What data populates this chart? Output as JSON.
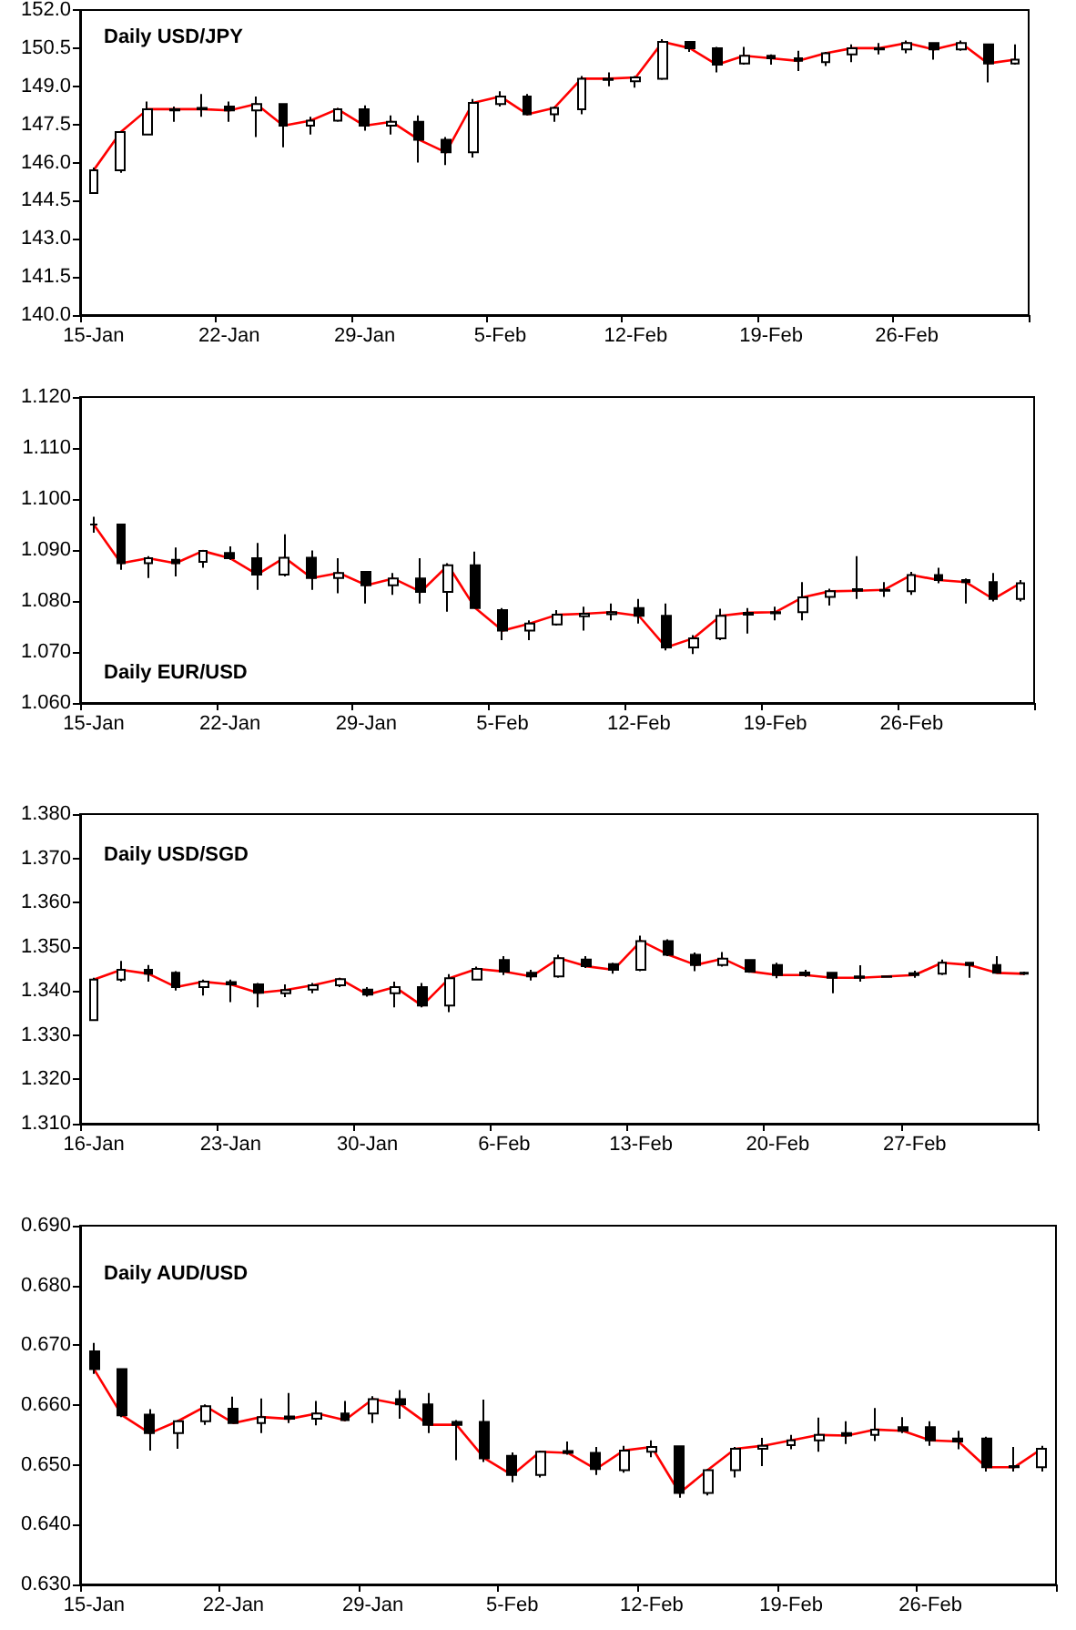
{
  "chart_data": [
    {
      "type": "candlestick",
      "title": "Daily USD/JPY",
      "categories": [
        "15-Jan",
        null,
        null,
        null,
        null,
        "22-Jan",
        null,
        null,
        null,
        null,
        "29-Jan",
        null,
        null,
        null,
        null,
        "5-Feb",
        null,
        null,
        null,
        null,
        "12-Feb",
        null,
        null,
        null,
        null,
        "19-Feb",
        null,
        null,
        null,
        null,
        "26-Feb",
        null,
        null,
        null,
        null
      ],
      "ylim": [
        140,
        152
      ],
      "yticks": [
        {
          "value": 140,
          "label": "140.0"
        },
        {
          "value": 141.5,
          "label": "141.5"
        },
        {
          "value": 143,
          "label": "143.0"
        },
        {
          "value": 144.5,
          "label": "144.5"
        },
        {
          "value": 146,
          "label": "146.0"
        },
        {
          "value": 147.5,
          "label": "147.5"
        },
        {
          "value": 149,
          "label": "149.0"
        },
        {
          "value": 150.5,
          "label": "150.5"
        },
        {
          "value": 152,
          "label": "152.0"
        }
      ],
      "grid": false,
      "series": [
        {
          "color": "#000000",
          "ohlc": [
            [
              144.8,
              145.8,
              144.8,
              145.7
            ],
            [
              145.7,
              147.2,
              145.6,
              147.2
            ],
            [
              147.1,
              148.4,
              147.1,
              148.1
            ],
            [
              148.05,
              148.2,
              147.6,
              148.1
            ],
            [
              148.15,
              148.7,
              147.8,
              148.1
            ],
            [
              148.2,
              148.4,
              147.6,
              148.05
            ],
            [
              148.05,
              148.6,
              147.0,
              148.3
            ],
            [
              148.3,
              148.3,
              146.6,
              147.45
            ],
            [
              147.45,
              147.8,
              147.1,
              147.65
            ],
            [
              147.65,
              148.15,
              147.6,
              148.1
            ],
            [
              148.1,
              148.25,
              147.25,
              147.45
            ],
            [
              147.45,
              147.85,
              147.1,
              147.6
            ],
            [
              147.6,
              147.85,
              146.0,
              146.9
            ],
            [
              146.9,
              147.0,
              145.9,
              146.4
            ],
            [
              146.4,
              148.5,
              146.2,
              148.35
            ],
            [
              148.3,
              148.8,
              148.2,
              148.6
            ],
            [
              148.6,
              148.7,
              147.85,
              147.9
            ],
            [
              147.9,
              148.2,
              147.6,
              148.15
            ],
            [
              148.1,
              149.4,
              147.9,
              149.3
            ],
            [
              149.25,
              149.55,
              149.0,
              149.3
            ],
            [
              149.2,
              149.4,
              148.95,
              149.35
            ],
            [
              149.3,
              150.85,
              149.25,
              150.75
            ],
            [
              150.75,
              150.75,
              150.35,
              150.5
            ],
            [
              150.5,
              150.55,
              149.55,
              149.85
            ],
            [
              149.9,
              150.55,
              149.85,
              150.2
            ],
            [
              150.2,
              150.25,
              149.85,
              150.1
            ],
            [
              150.1,
              150.4,
              149.6,
              150.0
            ],
            [
              149.95,
              150.35,
              149.8,
              150.3
            ],
            [
              150.25,
              150.65,
              149.95,
              150.5
            ],
            [
              150.45,
              150.7,
              150.25,
              150.5
            ],
            [
              150.45,
              150.8,
              150.3,
              150.7
            ],
            [
              150.7,
              150.7,
              150.05,
              150.45
            ],
            [
              150.45,
              150.8,
              150.4,
              150.7
            ],
            [
              150.65,
              150.65,
              149.15,
              149.9
            ],
            [
              149.9,
              150.65,
              149.85,
              150.05
            ]
          ]
        },
        {
          "type": "line",
          "color": "#ff0000",
          "marker": "none",
          "values": [
            145.7,
            147.2,
            148.1,
            148.1,
            148.1,
            148.05,
            148.3,
            147.45,
            147.65,
            148.1,
            147.45,
            147.6,
            146.9,
            146.4,
            148.35,
            148.6,
            147.9,
            148.15,
            149.3,
            149.3,
            149.35,
            150.75,
            150.5,
            149.85,
            150.2,
            150.1,
            150.0,
            150.3,
            150.5,
            150.5,
            150.7,
            150.45,
            150.7,
            149.9,
            150.05
          ]
        }
      ]
    },
    {
      "type": "candlestick",
      "title": "Daily EUR/USD",
      "categories": [
        "15-Jan",
        null,
        null,
        null,
        null,
        "22-Jan",
        null,
        null,
        null,
        null,
        "29-Jan",
        null,
        null,
        null,
        null,
        "5-Feb",
        null,
        null,
        null,
        null,
        "12-Feb",
        null,
        null,
        null,
        null,
        "19-Feb",
        null,
        null,
        null,
        null,
        "26-Feb",
        null,
        null,
        null,
        null
      ],
      "ylim": [
        1.06,
        1.12
      ],
      "yticks": [
        {
          "value": 1.06,
          "label": "1.060"
        },
        {
          "value": 1.07,
          "label": "1.070"
        },
        {
          "value": 1.08,
          "label": "1.080"
        },
        {
          "value": 1.09,
          "label": "1.090"
        },
        {
          "value": 1.1,
          "label": "1.100"
        },
        {
          "value": 1.11,
          "label": "1.110"
        },
        {
          "value": 1.12,
          "label": "1.120"
        }
      ],
      "grid": false,
      "series": [
        {
          "color": "#000000",
          "ohlc": [
            [
              1.095,
              1.0965,
              1.0934,
              1.095
            ],
            [
              1.095,
              1.095,
              1.0861,
              1.0874
            ],
            [
              1.0874,
              1.0888,
              1.0845,
              1.0884
            ],
            [
              1.0881,
              1.0905,
              1.0848,
              1.0874
            ],
            [
              1.0877,
              1.0899,
              1.0865,
              1.0898
            ],
            [
              1.0894,
              1.0907,
              1.0881,
              1.0884
            ],
            [
              1.0884,
              1.0914,
              1.0822,
              1.0852
            ],
            [
              1.0852,
              1.0931,
              1.0848,
              1.0885
            ],
            [
              1.0885,
              1.0899,
              1.0822,
              1.0845
            ],
            [
              1.0845,
              1.0884,
              1.0815,
              1.0855
            ],
            [
              1.0857,
              1.0857,
              1.0795,
              1.0831
            ],
            [
              1.0831,
              1.0855,
              1.0812,
              1.0844
            ],
            [
              1.0844,
              1.0884,
              1.0795,
              1.0818
            ],
            [
              1.0818,
              1.0874,
              1.0779,
              1.087
            ],
            [
              1.087,
              1.0897,
              1.0786,
              1.0786
            ],
            [
              1.0782,
              1.0786,
              1.0723,
              1.0742
            ],
            [
              1.0742,
              1.0762,
              1.0723,
              1.0756
            ],
            [
              1.0754,
              1.0782,
              1.0752,
              1.0773
            ],
            [
              1.077,
              1.0789,
              1.0742,
              1.0775
            ],
            [
              1.0774,
              1.0795,
              1.0762,
              1.0778
            ],
            [
              1.0786,
              1.0804,
              1.0756,
              1.0771
            ],
            [
              1.0771,
              1.0795,
              1.0703,
              1.0709
            ],
            [
              1.0709,
              1.0733,
              1.0696,
              1.0727
            ],
            [
              1.0727,
              1.0785,
              1.0723,
              1.0771
            ],
            [
              1.0773,
              1.0786,
              1.0736,
              1.0777
            ],
            [
              1.0776,
              1.0789,
              1.0762,
              1.0778
            ],
            [
              1.0778,
              1.0837,
              1.0762,
              1.0807
            ],
            [
              1.0808,
              1.0824,
              1.0791,
              1.0819
            ],
            [
              1.0823,
              1.0888,
              1.0804,
              1.082
            ],
            [
              1.082,
              1.0837,
              1.0808,
              1.0822
            ],
            [
              1.0819,
              1.0857,
              1.0812,
              1.0851
            ],
            [
              1.0851,
              1.0865,
              1.0835,
              1.0841
            ],
            [
              1.0841,
              1.0844,
              1.0795,
              1.0837
            ],
            [
              1.0837,
              1.0855,
              1.0799,
              1.0804
            ],
            [
              1.0804,
              1.0841,
              1.0799,
              1.0835
            ]
          ]
        },
        {
          "type": "line",
          "color": "#ff0000",
          "marker": "none",
          "values": [
            1.095,
            1.0874,
            1.0884,
            1.0874,
            1.0898,
            1.0884,
            1.0852,
            1.0885,
            1.0845,
            1.0855,
            1.0831,
            1.0844,
            1.0818,
            1.087,
            1.0786,
            1.0742,
            1.0756,
            1.0773,
            1.0775,
            1.0778,
            1.0771,
            1.0709,
            1.0727,
            1.0771,
            1.0777,
            1.0778,
            1.0807,
            1.0819,
            1.082,
            1.0822,
            1.0851,
            1.0841,
            1.0837,
            1.0804,
            1.0835
          ]
        }
      ]
    },
    {
      "type": "candlestick",
      "title": "Daily USD/SGD",
      "categories": [
        "16-Jan",
        null,
        null,
        null,
        null,
        "23-Jan",
        null,
        null,
        null,
        null,
        "30-Jan",
        null,
        null,
        null,
        null,
        "6-Feb",
        null,
        null,
        null,
        null,
        "13-Feb",
        null,
        null,
        null,
        null,
        "20-Feb",
        null,
        null,
        null,
        null,
        "27-Feb",
        null,
        null,
        null,
        null
      ],
      "ylim": [
        1.31,
        1.38
      ],
      "yticks": [
        {
          "value": 1.31,
          "label": "1.310"
        },
        {
          "value": 1.32,
          "label": "1.320"
        },
        {
          "value": 1.33,
          "label": "1.330"
        },
        {
          "value": 1.34,
          "label": "1.340"
        },
        {
          "value": 1.35,
          "label": "1.350"
        },
        {
          "value": 1.36,
          "label": "1.360"
        },
        {
          "value": 1.37,
          "label": "1.370"
        },
        {
          "value": 1.38,
          "label": "1.380"
        }
      ],
      "grid": false,
      "series": [
        {
          "color": "#000000",
          "ohlc": [
            [
              1.3334,
              1.343,
              1.3334,
              1.3426
            ],
            [
              1.3426,
              1.3468,
              1.3421,
              1.3448
            ],
            [
              1.3448,
              1.3459,
              1.3421,
              1.3439
            ],
            [
              1.3441,
              1.3445,
              1.3401,
              1.3409
            ],
            [
              1.3409,
              1.3426,
              1.339,
              1.3421
            ],
            [
              1.342,
              1.3426,
              1.3375,
              1.3415
            ],
            [
              1.3415,
              1.3418,
              1.3363,
              1.3396
            ],
            [
              1.3395,
              1.3415,
              1.3386,
              1.3402
            ],
            [
              1.3403,
              1.3418,
              1.3395,
              1.3413
            ],
            [
              1.3413,
              1.343,
              1.3409,
              1.3427
            ],
            [
              1.3403,
              1.3409,
              1.3387,
              1.3392
            ],
            [
              1.3395,
              1.3421,
              1.3363,
              1.3409
            ],
            [
              1.3409,
              1.3418,
              1.3363,
              1.3367
            ],
            [
              1.3367,
              1.3438,
              1.3352,
              1.3429
            ],
            [
              1.3426,
              1.3455,
              1.3424,
              1.345
            ],
            [
              1.347,
              1.3479,
              1.3436,
              1.3444
            ],
            [
              1.3441,
              1.3448,
              1.3424,
              1.3433
            ],
            [
              1.3433,
              1.3482,
              1.343,
              1.3474
            ],
            [
              1.3471,
              1.3479,
              1.3452,
              1.3456
            ],
            [
              1.3461,
              1.3464,
              1.3439,
              1.3448
            ],
            [
              1.3448,
              1.3525,
              1.3445,
              1.3513
            ],
            [
              1.3513,
              1.3517,
              1.3479,
              1.3482
            ],
            [
              1.3482,
              1.3487,
              1.3445,
              1.3459
            ],
            [
              1.3459,
              1.3488,
              1.3455,
              1.3473
            ],
            [
              1.347,
              1.3471,
              1.3441,
              1.3444
            ],
            [
              1.3459,
              1.3464,
              1.3429,
              1.3436
            ],
            [
              1.3442,
              1.3448,
              1.3432,
              1.3436
            ],
            [
              1.3441,
              1.3442,
              1.3395,
              1.343
            ],
            [
              1.3433,
              1.3458,
              1.3421,
              1.343
            ],
            [
              1.3432,
              1.3435,
              1.343,
              1.3433
            ],
            [
              1.344,
              1.3446,
              1.343,
              1.3436
            ],
            [
              1.3439,
              1.3471,
              1.3436,
              1.3464
            ],
            [
              1.3464,
              1.3464,
              1.343,
              1.3459
            ],
            [
              1.3459,
              1.3479,
              1.3439,
              1.3441
            ],
            [
              1.3441,
              1.3444,
              1.3436,
              1.3439
            ]
          ]
        },
        {
          "type": "line",
          "color": "#ff0000",
          "marker": "none",
          "values": [
            1.3426,
            1.3448,
            1.3439,
            1.3409,
            1.3421,
            1.3415,
            1.3396,
            1.3402,
            1.3413,
            1.3427,
            1.3392,
            1.3409,
            1.3367,
            1.3429,
            1.345,
            1.3444,
            1.3433,
            1.3474,
            1.3456,
            1.3448,
            1.3513,
            1.3482,
            1.3459,
            1.3473,
            1.3444,
            1.3436,
            1.3436,
            1.343,
            1.343,
            1.3433,
            1.3436,
            1.3464,
            1.3459,
            1.3441,
            1.3439
          ]
        }
      ]
    },
    {
      "type": "candlestick",
      "title": "Daily AUD/USD",
      "categories": [
        "15-Jan",
        null,
        null,
        null,
        null,
        "22-Jan",
        null,
        null,
        null,
        null,
        "29-Jan",
        null,
        null,
        null,
        null,
        "5-Feb",
        null,
        null,
        null,
        null,
        "12-Feb",
        null,
        null,
        null,
        null,
        "19-Feb",
        null,
        null,
        null,
        null,
        "26-Feb",
        null,
        null,
        null,
        null
      ],
      "ylim": [
        0.63,
        0.69
      ],
      "yticks": [
        {
          "value": 0.63,
          "label": "0.630"
        },
        {
          "value": 0.64,
          "label": "0.640"
        },
        {
          "value": 0.65,
          "label": "0.650"
        },
        {
          "value": 0.66,
          "label": "0.660"
        },
        {
          "value": 0.67,
          "label": "0.670"
        },
        {
          "value": 0.68,
          "label": "0.680"
        },
        {
          "value": 0.69,
          "label": "0.690"
        }
      ],
      "grid": false,
      "series": [
        {
          "color": "#000000",
          "ohlc": [
            [
              0.669,
              0.6704,
              0.6652,
              0.666
            ],
            [
              0.666,
              0.666,
              0.658,
              0.6583
            ],
            [
              0.6584,
              0.6593,
              0.6524,
              0.6553
            ],
            [
              0.6553,
              0.6575,
              0.6527,
              0.6573
            ],
            [
              0.6573,
              0.6601,
              0.6567,
              0.6598
            ],
            [
              0.6594,
              0.6614,
              0.657,
              0.657
            ],
            [
              0.657,
              0.6611,
              0.6553,
              0.658
            ],
            [
              0.6581,
              0.662,
              0.657,
              0.6577
            ],
            [
              0.6577,
              0.6607,
              0.6566,
              0.6586
            ],
            [
              0.6586,
              0.6607,
              0.6573,
              0.6575
            ],
            [
              0.6586,
              0.6615,
              0.657,
              0.661
            ],
            [
              0.661,
              0.6625,
              0.6577,
              0.6601
            ],
            [
              0.6601,
              0.662,
              0.6553,
              0.6567
            ],
            [
              0.6572,
              0.6575,
              0.6508,
              0.6567
            ],
            [
              0.6572,
              0.6609,
              0.6505,
              0.6511
            ],
            [
              0.6515,
              0.6521,
              0.6471,
              0.6483
            ],
            [
              0.6483,
              0.6524,
              0.6479,
              0.6522
            ],
            [
              0.6523,
              0.6539,
              0.6517,
              0.652
            ],
            [
              0.652,
              0.653,
              0.6483,
              0.6493
            ],
            [
              0.6491,
              0.6532,
              0.6487,
              0.6524
            ],
            [
              0.6522,
              0.6541,
              0.6513,
              0.653
            ],
            [
              0.6531,
              0.6531,
              0.6445,
              0.6453
            ],
            [
              0.6453,
              0.6493,
              0.6449,
              0.6491
            ],
            [
              0.6491,
              0.653,
              0.6479,
              0.6527
            ],
            [
              0.6527,
              0.6545,
              0.6498,
              0.6532
            ],
            [
              0.6533,
              0.655,
              0.6526,
              0.6541
            ],
            [
              0.6541,
              0.6579,
              0.6522,
              0.655
            ],
            [
              0.6553,
              0.6573,
              0.6535,
              0.6549
            ],
            [
              0.655,
              0.6595,
              0.654,
              0.6559
            ],
            [
              0.6563,
              0.658,
              0.6553,
              0.6557
            ],
            [
              0.6563,
              0.6573,
              0.6532,
              0.6541
            ],
            [
              0.6544,
              0.6557,
              0.6526,
              0.6539
            ],
            [
              0.6544,
              0.6547,
              0.6489,
              0.6496
            ],
            [
              0.6498,
              0.653,
              0.6489,
              0.6496
            ],
            [
              0.6496,
              0.6532,
              0.6489,
              0.6527
            ]
          ]
        },
        {
          "type": "line",
          "color": "#ff0000",
          "marker": "none",
          "values": [
            0.666,
            0.6583,
            0.6553,
            0.6573,
            0.6598,
            0.657,
            0.658,
            0.6577,
            0.6586,
            0.6575,
            0.661,
            0.6601,
            0.6567,
            0.6567,
            0.6511,
            0.6483,
            0.6522,
            0.652,
            0.6493,
            0.6524,
            0.653,
            0.6453,
            0.6491,
            0.6527,
            0.6532,
            0.6541,
            0.655,
            0.6549,
            0.6559,
            0.6557,
            0.6541,
            0.6539,
            0.6496,
            0.6496,
            0.6527
          ]
        }
      ]
    }
  ]
}
